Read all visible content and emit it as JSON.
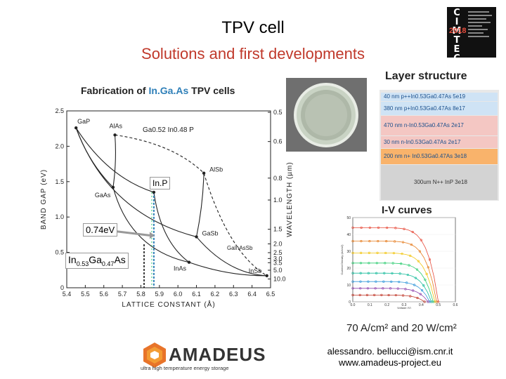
{
  "title": "TPV cell",
  "subtitle": "Solutions and first developments",
  "fabrication": {
    "prefix": "Fabrication of ",
    "material": "In.Ga.As",
    "suffix": " TPV cells"
  },
  "layer_structure_title": "Layer structure",
  "layers": [
    {
      "label": "40 nm  p++In0.53Ga0.47As 5e19",
      "color": "#cfe3f5"
    },
    {
      "label": "380 nm  p+In0.53Ga0.47As 8e17",
      "color": "#cfe3f5"
    },
    {
      "label": "470 nm  n-In0.53Ga0.47As 2e17",
      "color": "#f4c7c3"
    },
    {
      "label": "30 nm  n-In0.53Ga0.47As 2e17",
      "color": "#f4c7c3"
    },
    {
      "label": "200 nm  n+ In0.53Ga0.47As 3e18",
      "color": "#f9b36b"
    },
    {
      "label": "300um N++  InP 3e18",
      "color": "#d3d3d3"
    }
  ],
  "iv_title": "I-V curves",
  "performance": "70 A/cm² and 20 W/cm²",
  "contact": {
    "email": "alessandro. bellucci@ism.cnr.it",
    "web": "www.amadeus-project.eu"
  },
  "brand": {
    "name": "AMADEUS",
    "tagline": "ultra high temperature energy storage"
  },
  "conference_logo": {
    "letters": [
      "C",
      "I",
      "M",
      "T",
      "E",
      "C"
    ],
    "year": "2018"
  },
  "annotations": {
    "inp": "In.P",
    "bandgap": "0.74eV",
    "ingaas": {
      "base1": "In",
      "sub1": "0.53",
      "base2": "Ga",
      "sub2": "0.47",
      "base3": "As"
    }
  },
  "chart_data": [
    {
      "type": "line",
      "title": "",
      "xlabel": "LATTICE CONSTANT (Å)",
      "ylabel": "BAND GAP (eV)",
      "y2label": "WAVELENGTH (µm)",
      "xlim": [
        5.4,
        6.5
      ],
      "ylim": [
        0,
        2.5
      ],
      "x_ticks": [
        "5.4",
        "5.5",
        "5.6",
        "5.7",
        "5.8",
        "5.9",
        "6.0",
        "6.1",
        "6.2",
        "6.3",
        "6.4",
        "6.5"
      ],
      "y_ticks": [
        "0",
        "0.5",
        "1.0",
        "1.5",
        "2.0",
        "2.5"
      ],
      "y2_ticks": [
        "0.5",
        "0.6",
        "0.8",
        "1.0",
        "1.5",
        "2.0",
        "2.5",
        "3.0",
        "3.5",
        "5.0",
        "10.0"
      ],
      "points": [
        {
          "label": "GaP",
          "x": 5.45,
          "y": 2.26
        },
        {
          "label": "AlAs",
          "x": 5.66,
          "y": 2.16
        },
        {
          "label": "GaAs",
          "x": 5.65,
          "y": 1.42
        },
        {
          "label": "InP",
          "x": 5.87,
          "y": 1.35
        },
        {
          "label": "AlSb",
          "x": 6.14,
          "y": 1.62
        },
        {
          "label": "GaSb",
          "x": 6.1,
          "y": 0.72
        },
        {
          "label": "InAs",
          "x": 6.06,
          "y": 0.36
        },
        {
          "label": "InSb",
          "x": 6.48,
          "y": 0.17
        }
      ],
      "curve_labels": [
        "Ga0.52 In0.48 P",
        "GaInAsSb"
      ]
    },
    {
      "type": "line",
      "title": "",
      "xlabel": "Voltage (V)",
      "ylabel": "Current Density (A/cm2)",
      "xlim": [
        0,
        0.6
      ],
      "ylim": [
        0,
        50
      ],
      "x_ticks": [
        "0.0",
        "0.1",
        "0.2",
        "0.3",
        "0.4",
        "0.5",
        "0.6"
      ],
      "y_ticks": [
        "0",
        "10",
        "20",
        "30",
        "40",
        "50"
      ],
      "series": [
        {
          "color": "#e74c3c",
          "isc": 44,
          "voc": 0.5
        },
        {
          "color": "#e67e22",
          "isc": 36,
          "voc": 0.49
        },
        {
          "color": "#f1c40f",
          "isc": 29,
          "voc": 0.48
        },
        {
          "color": "#2ecc71",
          "isc": 23,
          "voc": 0.47
        },
        {
          "color": "#1abc9c",
          "isc": 17,
          "voc": 0.46
        },
        {
          "color": "#3498db",
          "isc": 12,
          "voc": 0.45
        },
        {
          "color": "#8e44ad",
          "isc": 8,
          "voc": 0.44
        },
        {
          "color": "#c0392b",
          "isc": 4,
          "voc": 0.42
        }
      ]
    }
  ]
}
